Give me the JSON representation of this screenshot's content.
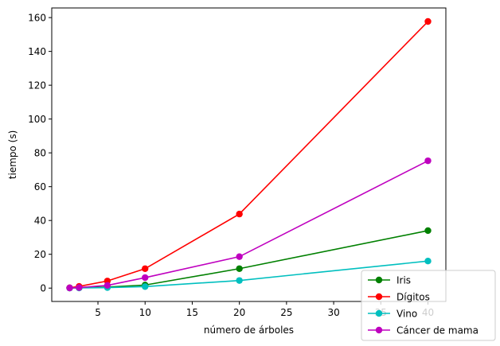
{
  "chart_data": {
    "type": "line",
    "title": "",
    "xlabel": "número de árboles",
    "ylabel": "tiempo (s)",
    "xlim": [
      0.1,
      41.9
    ],
    "ylim": [
      -7.9,
      165.7
    ],
    "xticks": [
      5,
      10,
      15,
      20,
      25,
      30,
      35,
      40
    ],
    "yticks": [
      0,
      20,
      40,
      60,
      80,
      100,
      120,
      140,
      160
    ],
    "grid": false,
    "legend_position": "bottom-right",
    "x": [
      2,
      3,
      6,
      10,
      20,
      40
    ],
    "series": [
      {
        "name": "Iris",
        "color": "#008000",
        "values": [
          0.1,
          0.2,
          0.6,
          1.8,
          11.5,
          34
        ]
      },
      {
        "name": "Dígitos",
        "color": "#ff0000",
        "values": [
          0.2,
          1.0,
          4.2,
          11.5,
          43.8,
          157.7
        ]
      },
      {
        "name": "Vino",
        "color": "#00bfbf",
        "values": [
          0.05,
          0.1,
          0.3,
          0.9,
          4.5,
          16
        ]
      },
      {
        "name": "Cáncer de mama",
        "color": "#bf00bf",
        "values": [
          0.1,
          0.3,
          1.6,
          6.2,
          18.6,
          75.3
        ]
      }
    ]
  }
}
